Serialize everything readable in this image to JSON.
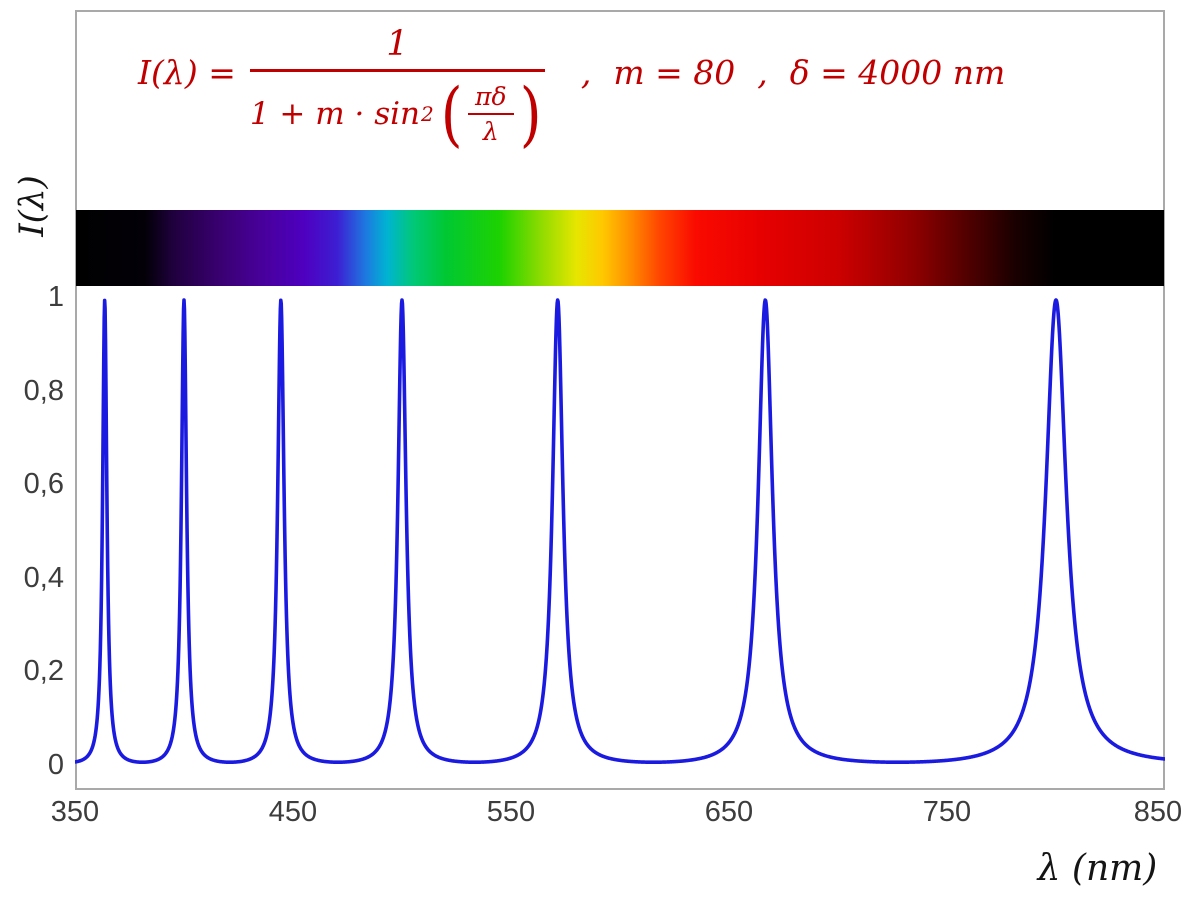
{
  "formula": {
    "color": "#c00000",
    "lhs": "I(λ) =",
    "numerator": "1",
    "denominator_prefix": "1 + m · sin",
    "denominator_exponent": "2",
    "paren_numerator": "πδ",
    "paren_denominator": "λ",
    "separator1": ",",
    "param_m": "m = 80",
    "separator2": ",",
    "param_delta": "δ = 4000 nm"
  },
  "chart_data": {
    "type": "line",
    "formula_text": "I(λ) = 1 / (1 + m·sin²(πδ/λ)) ,  m = 80 ,  δ = 4000 nm",
    "params": {
      "m": 80,
      "delta_nm": 4000
    },
    "xlabel": "λ  (nm)",
    "ylabel": "I(λ)",
    "xlim": [
      350,
      850
    ],
    "ylim": [
      0,
      1
    ],
    "x_ticks": [
      "350",
      "450",
      "550",
      "650",
      "750",
      "850"
    ],
    "x_tick_values": [
      350,
      450,
      550,
      650,
      750,
      850
    ],
    "y_ticks": [
      "0",
      "0,2",
      "0,4",
      "0,6",
      "0,8",
      "1"
    ],
    "y_tick_values": [
      0,
      0.2,
      0.4,
      0.6,
      0.8,
      1
    ],
    "grid": false,
    "legend": false,
    "series": [
      {
        "name": "I(λ)",
        "color": "#1a1ae0",
        "stroke_width": 3.6,
        "sample_step_nm": 0.2,
        "peak_wavelengths_nm": [
          363.6,
          400,
          444.4,
          500,
          571.4,
          666.7,
          800
        ],
        "peak_value": 1,
        "min_value": 0.0123
      }
    ],
    "spectrum_bar": {
      "stops": [
        {
          "wl": 350,
          "color": "#000000"
        },
        {
          "wl": 382,
          "color": "#030008"
        },
        {
          "wl": 395,
          "color": "#20003e"
        },
        {
          "wl": 415,
          "color": "#38006e"
        },
        {
          "wl": 435,
          "color": "#48009a"
        },
        {
          "wl": 455,
          "color": "#4e00c0"
        },
        {
          "wl": 470,
          "color": "#3d1ed2"
        },
        {
          "wl": 483,
          "color": "#1e78e0"
        },
        {
          "wl": 493,
          "color": "#00b4d2"
        },
        {
          "wl": 505,
          "color": "#00c878"
        },
        {
          "wl": 520,
          "color": "#00c832"
        },
        {
          "wl": 545,
          "color": "#1ed200"
        },
        {
          "wl": 565,
          "color": "#96dc00"
        },
        {
          "wl": 580,
          "color": "#e6e600"
        },
        {
          "wl": 592,
          "color": "#ffc800"
        },
        {
          "wl": 605,
          "color": "#ff8c00"
        },
        {
          "wl": 618,
          "color": "#ff4600"
        },
        {
          "wl": 635,
          "color": "#fa0a00"
        },
        {
          "wl": 665,
          "color": "#e60000"
        },
        {
          "wl": 700,
          "color": "#cd0000"
        },
        {
          "wl": 735,
          "color": "#8f0000"
        },
        {
          "wl": 762,
          "color": "#4b0000"
        },
        {
          "wl": 782,
          "color": "#190000"
        },
        {
          "wl": 800,
          "color": "#000000"
        },
        {
          "wl": 850,
          "color": "#000000"
        }
      ]
    }
  }
}
